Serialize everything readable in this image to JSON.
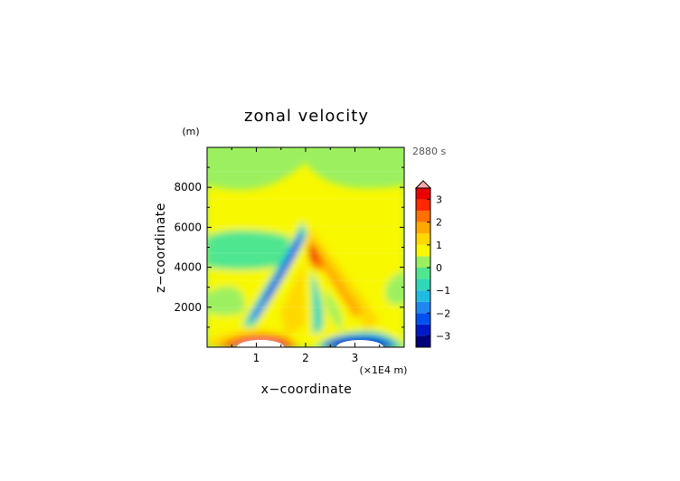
{
  "chart_data": {
    "type": "heatmap",
    "title": "zonal velocity",
    "xlabel": "x−coordinate",
    "ylabel": "z−coordinate",
    "y_unit": "(m)",
    "x_unit": "(×1E4 m)",
    "time_label": "2880 s",
    "xlim": [
      0,
      4
    ],
    "ylim": [
      0,
      10000
    ],
    "x_ticks": [
      1,
      2,
      3
    ],
    "x_tick_labels": [
      "1",
      "2",
      "3"
    ],
    "y_ticks": [
      2000,
      4000,
      6000,
      8000
    ],
    "y_tick_labels": [
      "2000",
      "4000",
      "6000",
      "8000"
    ],
    "colorbar": {
      "levels": [
        -3.5,
        -3,
        -2.5,
        -2,
        -1.5,
        -1,
        -0.5,
        0,
        0.5,
        1,
        1.5,
        2,
        2.5,
        3,
        3.5
      ],
      "tick_values": [
        -3,
        -2,
        -1,
        0,
        1,
        2,
        3
      ],
      "tick_labels": [
        "−3",
        "−2",
        "−1",
        "0",
        "1",
        "2",
        "3"
      ],
      "colors": [
        "#00007a",
        "#0018c8",
        "#0050f0",
        "#1e88f0",
        "#20bce0",
        "#30d8b8",
        "#50e690",
        "#9cf060",
        "#f8f800",
        "#ffd800",
        "#ffa800",
        "#ff7000",
        "#ff2800",
        "#e80000",
        "#ffaaaa"
      ],
      "extend_max": true
    }
  }
}
